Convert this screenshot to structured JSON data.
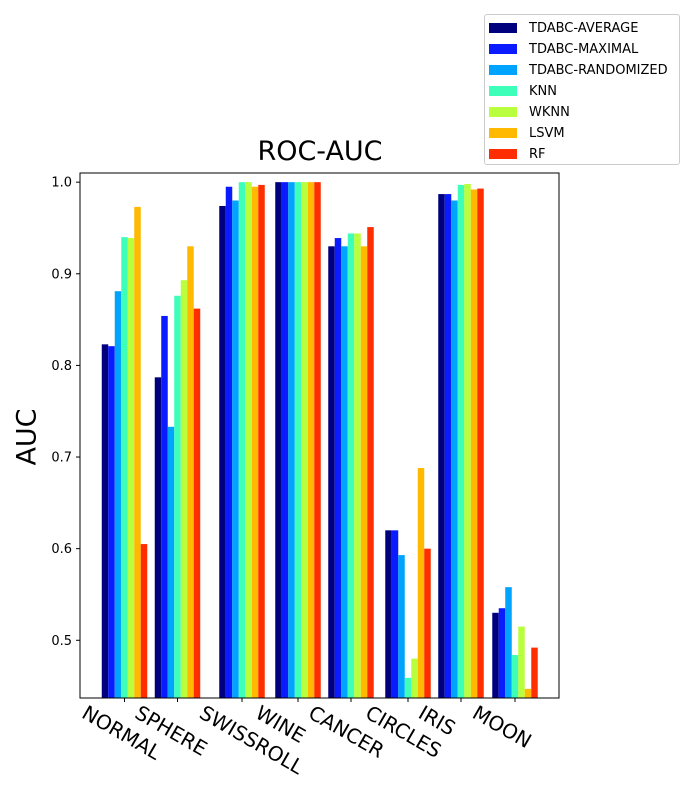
{
  "chart_data": {
    "type": "bar",
    "title": "ROC-AUC",
    "xlabel": "",
    "ylabel": "AUC",
    "ylim": [
      0.437,
      1.01
    ],
    "yticks": [
      "0.5",
      "0.6",
      "0.7",
      "0.8",
      "0.9",
      "1.0"
    ],
    "categories": [
      "NORMAL",
      "SPHERE",
      "SWISSROLL",
      "WINE",
      "CANCER",
      "CIRCLES",
      "IRIS",
      "MOON"
    ],
    "legend_position": "top-right",
    "grid": false,
    "series": [
      {
        "name": "TDABC-AVERAGE",
        "color": "#00007f",
        "values": [
          0.823,
          0.787,
          0.974,
          1.0,
          0.93,
          0.62,
          0.987,
          0.53
        ]
      },
      {
        "name": "TDABC-MAXIMAL",
        "color": "#0a1cff",
        "values": [
          0.821,
          0.854,
          0.995,
          1.0,
          0.939,
          0.62,
          0.987,
          0.535
        ]
      },
      {
        "name": "TDABC-RANDOMIZED",
        "color": "#00a4ff",
        "values": [
          0.881,
          0.733,
          0.98,
          1.0,
          0.93,
          0.593,
          0.98,
          0.558
        ]
      },
      {
        "name": "KNN",
        "color": "#3dffba",
        "values": [
          0.94,
          0.876,
          1.0,
          1.0,
          0.944,
          0.459,
          0.997,
          0.484
        ]
      },
      {
        "name": "WKNN",
        "color": "#baff3d",
        "values": [
          0.939,
          0.893,
          1.0,
          1.0,
          0.944,
          0.48,
          0.998,
          0.515
        ]
      },
      {
        "name": "LSVM",
        "color": "#ffb900",
        "values": [
          0.973,
          0.93,
          0.995,
          1.0,
          0.93,
          0.688,
          0.992,
          0.447
        ]
      },
      {
        "name": "RF",
        "color": "#ff2e00",
        "values": [
          0.605,
          0.862,
          0.997,
          1.0,
          0.951,
          0.6,
          0.993,
          0.492
        ]
      }
    ]
  }
}
